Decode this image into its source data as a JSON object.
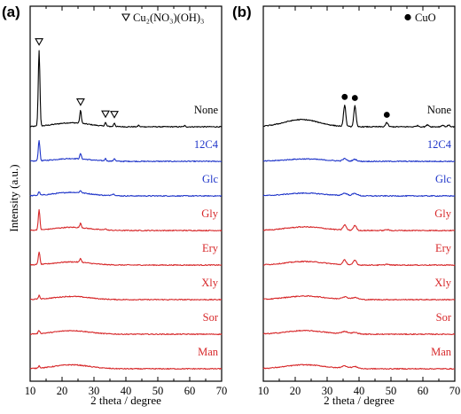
{
  "chart_data": [
    {
      "panel_label": "(a)",
      "type": "line",
      "xlabel": "2 theta / degree",
      "ylabel": "Intensity (a.u.)",
      "xlim": [
        10,
        70
      ],
      "xticks": [
        "10",
        "20",
        "30",
        "40",
        "50",
        "60",
        "70"
      ],
      "legend": {
        "marker": "open-triangle-down",
        "text": "Cu₂(NO₃)(OH)₃",
        "placement": "top-right"
      },
      "peak_markers": [
        {
          "x": 12.8,
          "marker": "open-triangle-down"
        },
        {
          "x": 25.8,
          "marker": "open-triangle-down"
        },
        {
          "x": 33.6,
          "marker": "open-triangle-down"
        },
        {
          "x": 36.4,
          "marker": "open-triangle-down"
        }
      ],
      "series": [
        {
          "name": "None",
          "color": "#000000",
          "offset": 7,
          "peaks": [
            [
              12.8,
              0.26,
              9.5
            ],
            [
              25.8,
              0.25,
              1.6
            ],
            [
              33.6,
              0.25,
              0.45
            ],
            [
              36.4,
              0.25,
              0.45
            ],
            [
              44.0,
              0.2,
              0.2
            ],
            [
              58.4,
              0.2,
              0.15
            ]
          ],
          "hump": [
            23,
            5.5,
            0.5
          ]
        },
        {
          "name": "12C4",
          "color": "#1f35c9",
          "offset": 6,
          "peaks": [
            [
              12.8,
              0.26,
              2.6
            ],
            [
              25.8,
              0.25,
              0.65
            ],
            [
              33.6,
              0.25,
              0.3
            ],
            [
              36.4,
              0.25,
              0.35
            ]
          ],
          "hump": [
            23,
            5.5,
            0.35
          ]
        },
        {
          "name": "Glc",
          "color": "#1f35c9",
          "offset": 5,
          "peaks": [
            [
              12.8,
              0.26,
              0.45
            ],
            [
              25.8,
              0.3,
              0.25
            ],
            [
              36.0,
              0.6,
              0.2
            ]
          ],
          "hump": [
            23,
            5.5,
            0.45
          ]
        },
        {
          "name": "Gly",
          "color": "#d7282a",
          "offset": 4,
          "peaks": [
            [
              12.8,
              0.26,
              2.5
            ],
            [
              25.8,
              0.25,
              0.55
            ],
            [
              33.6,
              0.25,
              0.2
            ]
          ],
          "hump": [
            23,
            5.5,
            0.4
          ]
        },
        {
          "name": "Ery",
          "color": "#d7282a",
          "offset": 3,
          "peaks": [
            [
              12.8,
              0.26,
              1.6
            ],
            [
              25.8,
              0.25,
              0.5
            ]
          ],
          "hump": [
            23,
            5.5,
            0.4
          ]
        },
        {
          "name": "Xly",
          "color": "#d7282a",
          "offset": 2,
          "peaks": [
            [
              12.8,
              0.26,
              0.45
            ]
          ],
          "hump": [
            23,
            5.5,
            0.4
          ]
        },
        {
          "name": "Sor",
          "color": "#d7282a",
          "offset": 1,
          "peaks": [
            [
              12.8,
              0.26,
              0.4
            ]
          ],
          "hump": [
            23,
            5.5,
            0.45
          ]
        },
        {
          "name": "Man",
          "color": "#d7282a",
          "offset": 0,
          "peaks": [
            [
              12.8,
              0.26,
              0.3
            ]
          ],
          "hump": [
            23,
            5.5,
            0.5
          ]
        }
      ]
    },
    {
      "panel_label": "(b)",
      "type": "line",
      "xlabel": "2 theta / degree",
      "ylabel": "",
      "xlim": [
        10,
        70
      ],
      "xticks": [
        "10",
        "20",
        "30",
        "40",
        "50",
        "60",
        "70"
      ],
      "legend": {
        "marker": "filled-circle",
        "text": "CuO",
        "placement": "top-right"
      },
      "peak_markers": [
        {
          "x": 35.5,
          "marker": "filled-circle"
        },
        {
          "x": 38.7,
          "marker": "filled-circle"
        },
        {
          "x": 48.7,
          "marker": "filled-circle"
        }
      ],
      "series": [
        {
          "name": "None",
          "color": "#000000",
          "offset": 7,
          "peaks": [
            [
              35.5,
              0.35,
              2.7
            ],
            [
              38.7,
              0.35,
              2.6
            ],
            [
              48.7,
              0.4,
              0.5
            ],
            [
              58.3,
              0.4,
              0.15
            ],
            [
              61.5,
              0.4,
              0.25
            ],
            [
              66.2,
              0.4,
              0.2
            ],
            [
              68.1,
              0.4,
              0.2
            ]
          ],
          "hump": [
            22,
            5.5,
            0.9
          ]
        },
        {
          "name": "12C4",
          "color": "#1f35c9",
          "offset": 6,
          "peaks": [
            [
              35.5,
              0.6,
              0.3
            ],
            [
              38.7,
              0.6,
              0.25
            ]
          ],
          "hump": [
            23,
            6,
            0.3
          ]
        },
        {
          "name": "Glc",
          "color": "#1f35c9",
          "offset": 5,
          "peaks": [
            [
              35.5,
              0.8,
              0.3
            ],
            [
              38.7,
              0.8,
              0.3
            ]
          ],
          "hump": [
            23,
            6,
            0.35
          ]
        },
        {
          "name": "Gly",
          "color": "#d7282a",
          "offset": 4,
          "peaks": [
            [
              35.5,
              0.5,
              0.65
            ],
            [
              38.7,
              0.5,
              0.6
            ],
            [
              48.7,
              0.5,
              0.12
            ]
          ],
          "hump": [
            23,
            6,
            0.45
          ]
        },
        {
          "name": "Ery",
          "color": "#d7282a",
          "offset": 3,
          "peaks": [
            [
              35.5,
              0.5,
              0.6
            ],
            [
              38.7,
              0.5,
              0.6
            ],
            [
              48.7,
              0.5,
              0.12
            ]
          ],
          "hump": [
            23,
            6,
            0.45
          ]
        },
        {
          "name": "Xly",
          "color": "#d7282a",
          "offset": 2,
          "peaks": [
            [
              35.5,
              1.0,
              0.3
            ],
            [
              38.7,
              1.0,
              0.25
            ]
          ],
          "hump": [
            23,
            6,
            0.45
          ]
        },
        {
          "name": "Sor",
          "color": "#d7282a",
          "offset": 1,
          "peaks": [
            [
              35.5,
              1.0,
              0.3
            ],
            [
              38.7,
              1.0,
              0.2
            ]
          ],
          "hump": [
            23,
            6,
            0.45
          ]
        },
        {
          "name": "Man",
          "color": "#d7282a",
          "offset": 0,
          "peaks": [
            [
              35.5,
              1.0,
              0.3
            ],
            [
              38.7,
              1.0,
              0.25
            ]
          ],
          "hump": [
            23,
            6,
            0.5
          ]
        }
      ]
    }
  ]
}
